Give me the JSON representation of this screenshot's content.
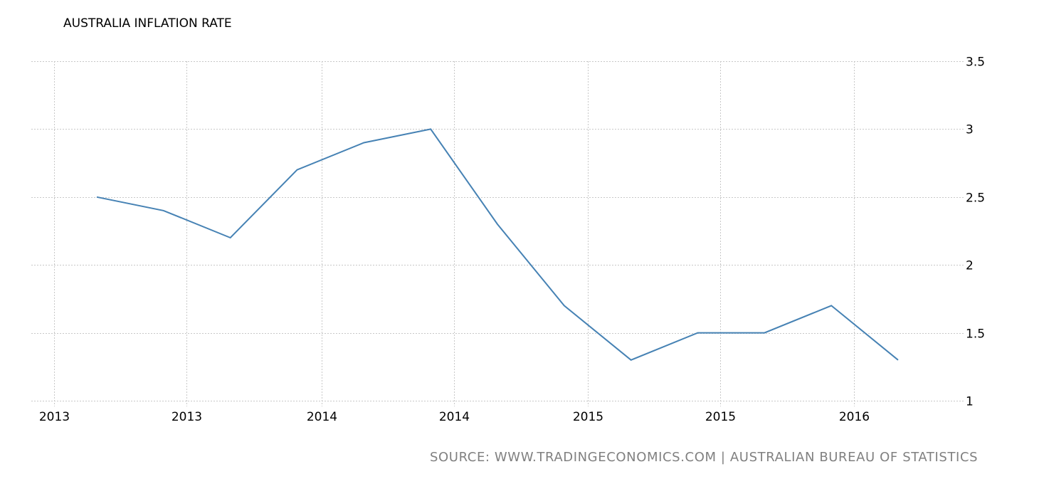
{
  "header": {
    "title": "AUSTRALIA INFLATION RATE"
  },
  "footer": {
    "source": "SOURCE: WWW.TRADINGECONOMICS.COM | AUSTRALIAN BUREAU OF STATISTICS"
  },
  "colors": {
    "line": "#4682b4",
    "grid": "#c8c8c8",
    "source_text": "#808080"
  },
  "chart_data": {
    "type": "line",
    "title": "AUSTRALIA INFLATION RATE",
    "xlabel": "",
    "ylabel": "",
    "ylim": [
      1,
      3.5
    ],
    "y_ticks": [
      "3.5",
      "3",
      "2.5",
      "2",
      "1.5",
      "1"
    ],
    "x_tick_labels": [
      "2013",
      "2013",
      "2014",
      "2014",
      "2015",
      "2015",
      "2016"
    ],
    "grid": true,
    "y_axis_position": "right",
    "legend": "none",
    "series": [
      {
        "name": "Australia Inflation Rate",
        "values": [
          2.5,
          2.4,
          2.2,
          2.7,
          2.9,
          3.0,
          2.3,
          1.7,
          1.3,
          1.5,
          1.5,
          1.7,
          1.3
        ]
      }
    ]
  }
}
